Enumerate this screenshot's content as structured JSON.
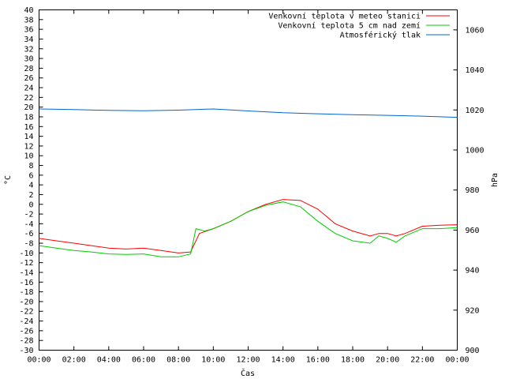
{
  "chart_data": {
    "type": "line",
    "xlabel": "Čas",
    "ylabel": "°C",
    "y2label": "hPa",
    "grid": false,
    "legend_position": "top-right",
    "xlim": [
      0,
      24
    ],
    "ylim": [
      -30,
      40
    ],
    "y2lim": [
      900,
      1070
    ],
    "x_ticks": [
      "00:00",
      "02:00",
      "04:00",
      "06:00",
      "08:00",
      "10:00",
      "12:00",
      "14:00",
      "16:00",
      "18:00",
      "20:00",
      "22:00",
      "00:00"
    ],
    "y_ticks": [
      "-30",
      "-28",
      "-26",
      "-24",
      "-22",
      "-20",
      "-18",
      "-16",
      "-14",
      "-12",
      "-10",
      "-8",
      "-6",
      "-4",
      "-2",
      "0",
      "2",
      "4",
      "6",
      "8",
      "10",
      "12",
      "14",
      "16",
      "18",
      "20",
      "22",
      "24",
      "26",
      "28",
      "30",
      "32",
      "34",
      "36",
      "38",
      "40"
    ],
    "y2_ticks": [
      "900",
      "920",
      "940",
      "960",
      "980",
      "1000",
      "1020",
      "1040",
      "1060"
    ],
    "series": [
      {
        "name": "Venkovní teplota v meteo stanici",
        "color": "#ff0000",
        "axis": "y",
        "x": [
          0,
          1,
          2,
          3,
          4,
          5,
          6,
          7,
          8,
          8.7,
          9.2,
          10,
          11,
          12,
          13,
          14,
          15,
          16,
          17,
          18,
          19,
          19.5,
          20,
          20.5,
          21,
          22,
          23,
          24
        ],
        "values": [
          -7,
          -7.5,
          -8,
          -8.5,
          -9,
          -9.2,
          -9,
          -9.5,
          -10,
          -9.8,
          -6,
          -5,
          -3.5,
          -1.5,
          0,
          1,
          0.8,
          -1,
          -4,
          -5.5,
          -6.5,
          -6,
          -6,
          -6.5,
          -6,
          -4.5,
          -4.3,
          -4.2
        ]
      },
      {
        "name": "Venkovní teplota 5 cm nad zemí",
        "color": "#00cc00",
        "axis": "y",
        "x": [
          0,
          1,
          2,
          3,
          4,
          5,
          6,
          7,
          8,
          8.7,
          9,
          9.5,
          10,
          11,
          12,
          13,
          14,
          15,
          16,
          17,
          18,
          19,
          19.5,
          20,
          20.5,
          21,
          22,
          23,
          24
        ],
        "values": [
          -8.5,
          -9,
          -9.5,
          -9.8,
          -10.2,
          -10.3,
          -10.2,
          -10.8,
          -10.8,
          -10.2,
          -5,
          -5.5,
          -5,
          -3.5,
          -1.5,
          -0.2,
          0.5,
          -0.5,
          -3.5,
          -6,
          -7.5,
          -8,
          -6.5,
          -7,
          -7.8,
          -6.5,
          -5,
          -5,
          -4.8
        ]
      },
      {
        "name": "Atmosférický tlak",
        "color": "#0066cc",
        "axis": "y2",
        "x": [
          0,
          2,
          4,
          6,
          8,
          10,
          12,
          14,
          16,
          18,
          20,
          22,
          24
        ],
        "values": [
          1020.5,
          1020.2,
          1019.8,
          1019.6,
          1019.9,
          1020.5,
          1019.5,
          1018.6,
          1018.1,
          1017.6,
          1017.3,
          1016.9,
          1016.3
        ]
      }
    ]
  }
}
